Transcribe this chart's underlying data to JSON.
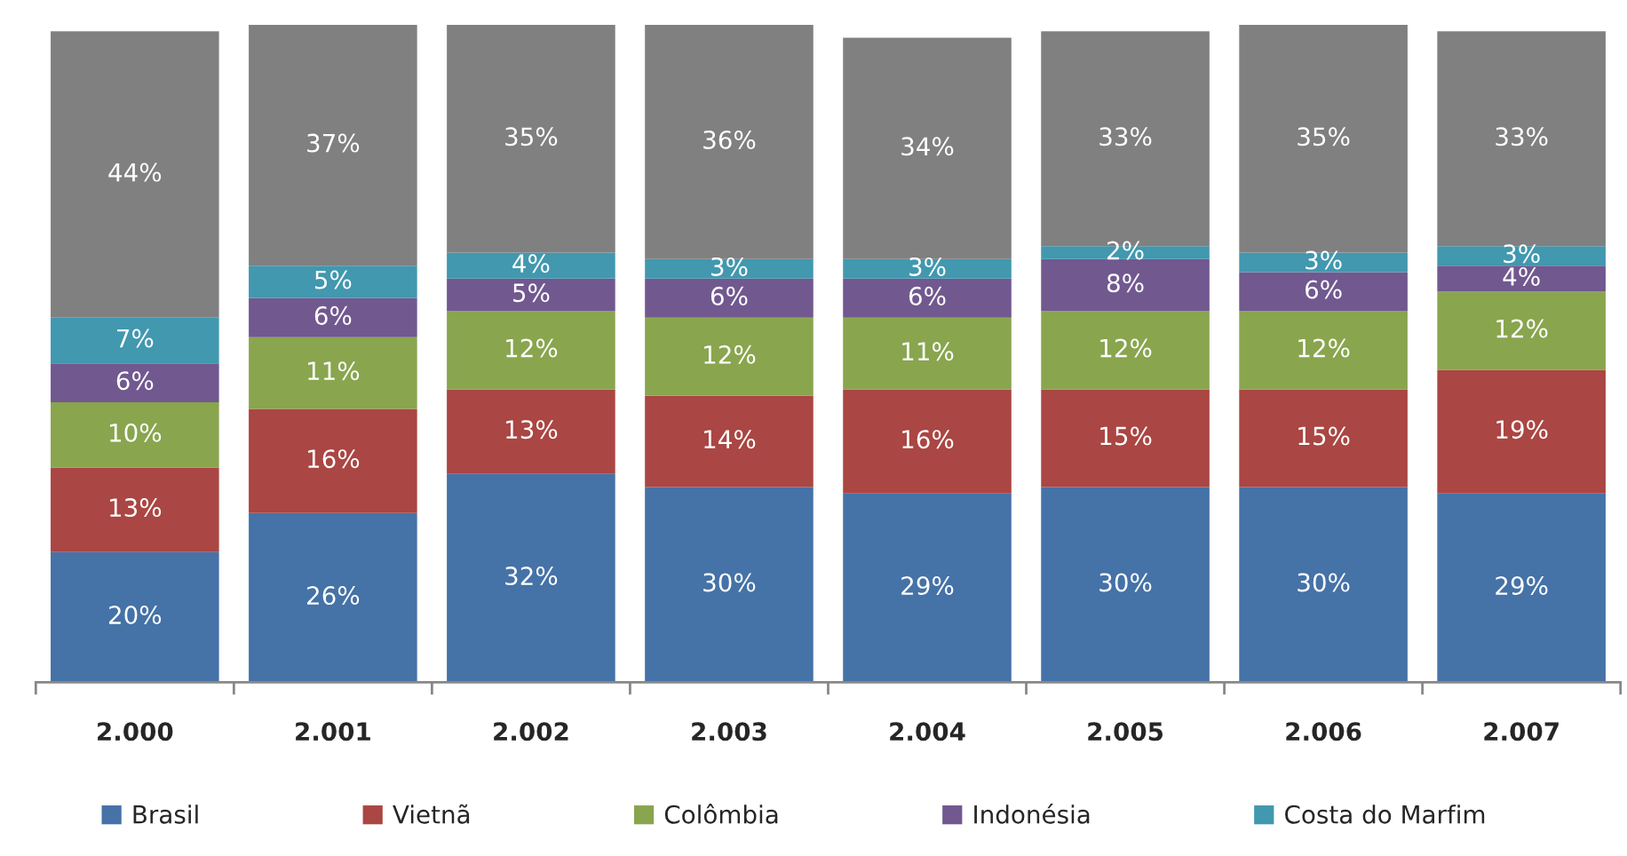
{
  "chart_data": {
    "type": "bar",
    "stacked": true,
    "tick_labels": "x",
    "legend": "bottom",
    "grid": false,
    "categories": [
      "2.000",
      "2.001",
      "2.002",
      "2.003",
      "2.004",
      "2.005",
      "2.006",
      "2.007"
    ],
    "series": [
      {
        "name": "Brasil",
        "color": "#4572a7",
        "values": [
          20,
          26,
          32,
          30,
          29,
          30,
          30,
          29
        ],
        "value_labels": [
          "20%",
          "26%",
          "32%",
          "30%",
          "29%",
          "30%",
          "30%",
          "29%"
        ]
      },
      {
        "name": "Vietnã",
        "color": "#aa4643",
        "values": [
          13,
          16,
          13,
          14,
          16,
          15,
          15,
          19
        ],
        "value_labels": [
          "13%",
          "16%",
          "13%",
          "14%",
          "16%",
          "15%",
          "15%",
          "19%"
        ]
      },
      {
        "name": "Colômbia",
        "color": "#89a54e",
        "values": [
          10,
          11,
          12,
          12,
          11,
          12,
          12,
          12
        ],
        "value_labels": [
          "10%",
          "11%",
          "12%",
          "12%",
          "11%",
          "12%",
          "12%",
          "12%"
        ]
      },
      {
        "name": "Indonésia",
        "color": "#71588f",
        "values": [
          6,
          6,
          5,
          6,
          6,
          8,
          6,
          4
        ],
        "value_labels": [
          "6%",
          "6%",
          "5%",
          "6%",
          "6%",
          "8%",
          "6%",
          "4%"
        ]
      },
      {
        "name": "Costa do Marfim",
        "color": "#4198af",
        "values": [
          7,
          5,
          4,
          3,
          3,
          2,
          3,
          3
        ],
        "value_labels": [
          "7%",
          "5%",
          "4%",
          "3%",
          "3%",
          "2%",
          "3%",
          "3%"
        ]
      },
      {
        "color": "#808080",
        "values": [
          44,
          37,
          35,
          36,
          34,
          33,
          35,
          33
        ],
        "value_labels": [
          "44%",
          "37%",
          "35%",
          "36%",
          "34%",
          "33%",
          "35%",
          "33%"
        ]
      }
    ]
  }
}
